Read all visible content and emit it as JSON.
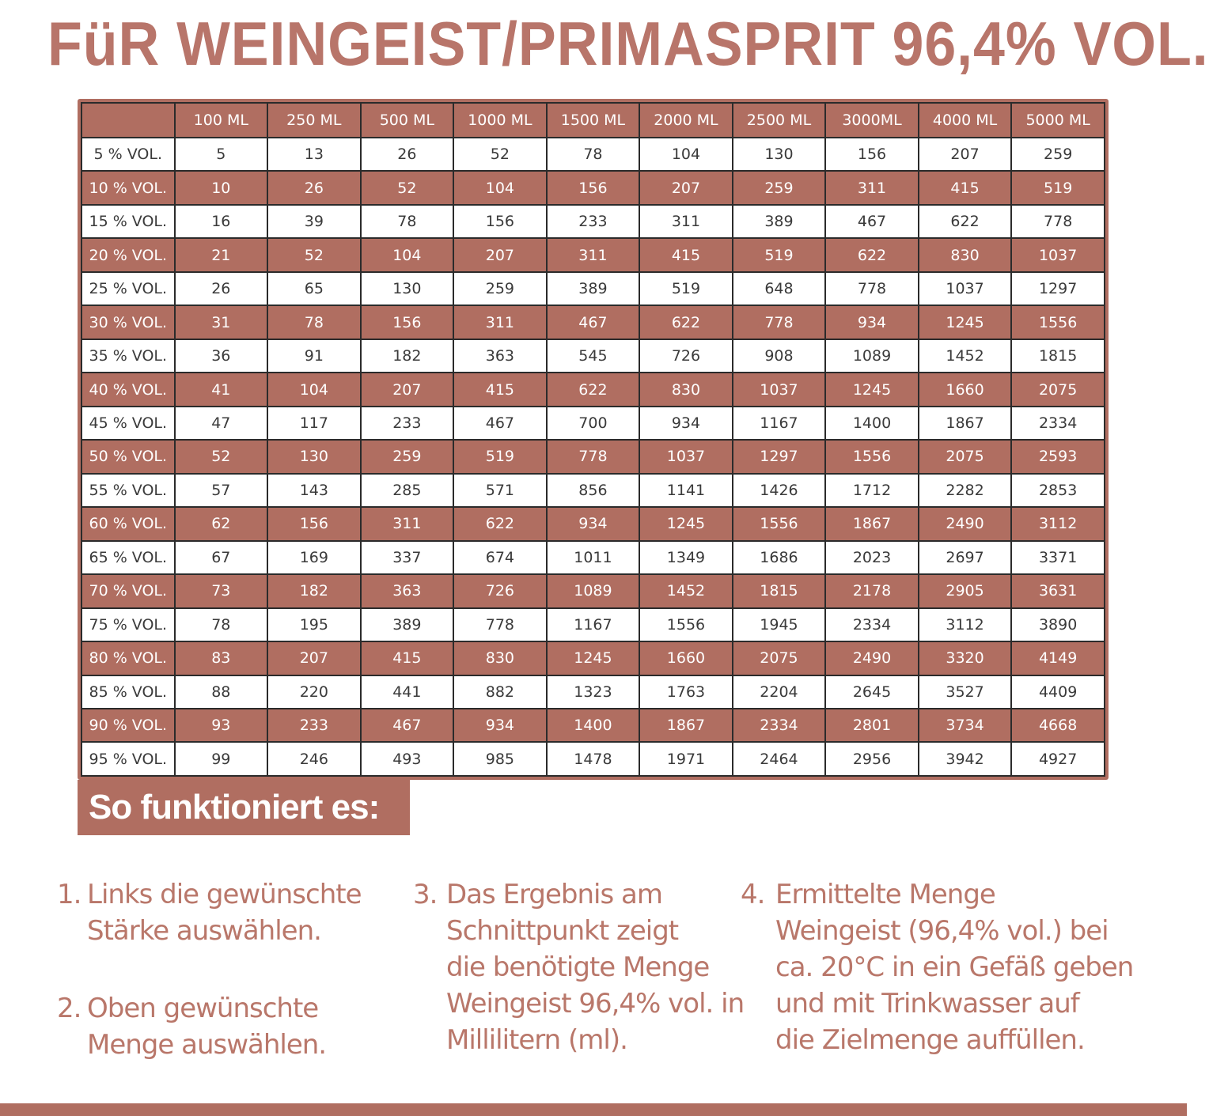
{
  "title": "FüR WEINGEIST/PRIMASPRIT 96,4% VOL.",
  "table": {
    "columns": [
      "",
      "100 ML",
      "250 ML",
      "500 ML",
      "1000 ML",
      "1500 ML",
      "2000 ML",
      "2500 ML",
      "3000ML",
      "4000 ML",
      "5000 ML"
    ],
    "rows": [
      [
        "5 % VOL.",
        "5",
        "13",
        "26",
        "52",
        "78",
        "104",
        "130",
        "156",
        "207",
        "259"
      ],
      [
        "10 % VOL.",
        "10",
        "26",
        "52",
        "104",
        "156",
        "207",
        "259",
        "311",
        "415",
        "519"
      ],
      [
        "15 % VOL.",
        "16",
        "39",
        "78",
        "156",
        "233",
        "311",
        "389",
        "467",
        "622",
        "778"
      ],
      [
        "20 % VOL.",
        "21",
        "52",
        "104",
        "207",
        "311",
        "415",
        "519",
        "622",
        "830",
        "1037"
      ],
      [
        "25 % VOL.",
        "26",
        "65",
        "130",
        "259",
        "389",
        "519",
        "648",
        "778",
        "1037",
        "1297"
      ],
      [
        "30 % VOL.",
        "31",
        "78",
        "156",
        "311",
        "467",
        "622",
        "778",
        "934",
        "1245",
        "1556"
      ],
      [
        "35 % VOL.",
        "36",
        "91",
        "182",
        "363",
        "545",
        "726",
        "908",
        "1089",
        "1452",
        "1815"
      ],
      [
        "40 % VOL.",
        "41",
        "104",
        "207",
        "415",
        "622",
        "830",
        "1037",
        "1245",
        "1660",
        "2075"
      ],
      [
        "45 % VOL.",
        "47",
        "117",
        "233",
        "467",
        "700",
        "934",
        "1167",
        "1400",
        "1867",
        "2334"
      ],
      [
        "50 % VOL.",
        "52",
        "130",
        "259",
        "519",
        "778",
        "1037",
        "1297",
        "1556",
        "2075",
        "2593"
      ],
      [
        "55 % VOL.",
        "57",
        "143",
        "285",
        "571",
        "856",
        "1141",
        "1426",
        "1712",
        "2282",
        "2853"
      ],
      [
        "60 % VOL.",
        "62",
        "156",
        "311",
        "622",
        "934",
        "1245",
        "1556",
        "1867",
        "2490",
        "3112"
      ],
      [
        "65 % VOL.",
        "67",
        "169",
        "337",
        "674",
        "1011",
        "1349",
        "1686",
        "2023",
        "2697",
        "3371"
      ],
      [
        "70 % VOL.",
        "73",
        "182",
        "363",
        "726",
        "1089",
        "1452",
        "1815",
        "2178",
        "2905",
        "3631"
      ],
      [
        "75 % VOL.",
        "78",
        "195",
        "389",
        "778",
        "1167",
        "1556",
        "1945",
        "2334",
        "3112",
        "3890"
      ],
      [
        "80 % VOL.",
        "83",
        "207",
        "415",
        "830",
        "1245",
        "1660",
        "2075",
        "2490",
        "3320",
        "4149"
      ],
      [
        "85 % VOL.",
        "88",
        "220",
        "441",
        "882",
        "1323",
        "1763",
        "2204",
        "2645",
        "3527",
        "4409"
      ],
      [
        "90 % VOL.",
        "93",
        "233",
        "467",
        "934",
        "1400",
        "1867",
        "2334",
        "2801",
        "3734",
        "4668"
      ],
      [
        "95 % VOL.",
        "99",
        "246",
        "493",
        "985",
        "1478",
        "1971",
        "2464",
        "2956",
        "3942",
        "4927"
      ]
    ]
  },
  "howto_heading": "So funktioniert es:",
  "steps": [
    {
      "num": "1.",
      "lines": [
        "Links die gewünschte",
        "Stärke auswählen."
      ]
    },
    {
      "num": "2.",
      "lines": [
        "Oben gewünschte",
        "Menge auswählen."
      ]
    },
    {
      "num": "3.",
      "lines": [
        "Das Ergebnis am",
        "Schnittpunkt zeigt",
        "die benötigte Menge",
        "Weingeist 96,4% vol. in",
        "Millilitern (ml)."
      ]
    },
    {
      "num": "4.",
      "lines": [
        "Ermittelte Menge",
        "Weingeist (96,4% vol.) bei",
        "ca. 20°C in ein Gefäß geben",
        "und mit Trinkwasser auf",
        "die Zielmenge auffüllen."
      ]
    }
  ],
  "colors": {
    "accent": "#b06e61",
    "text_accent": "#b9776a",
    "border": "#2b2b2b"
  }
}
